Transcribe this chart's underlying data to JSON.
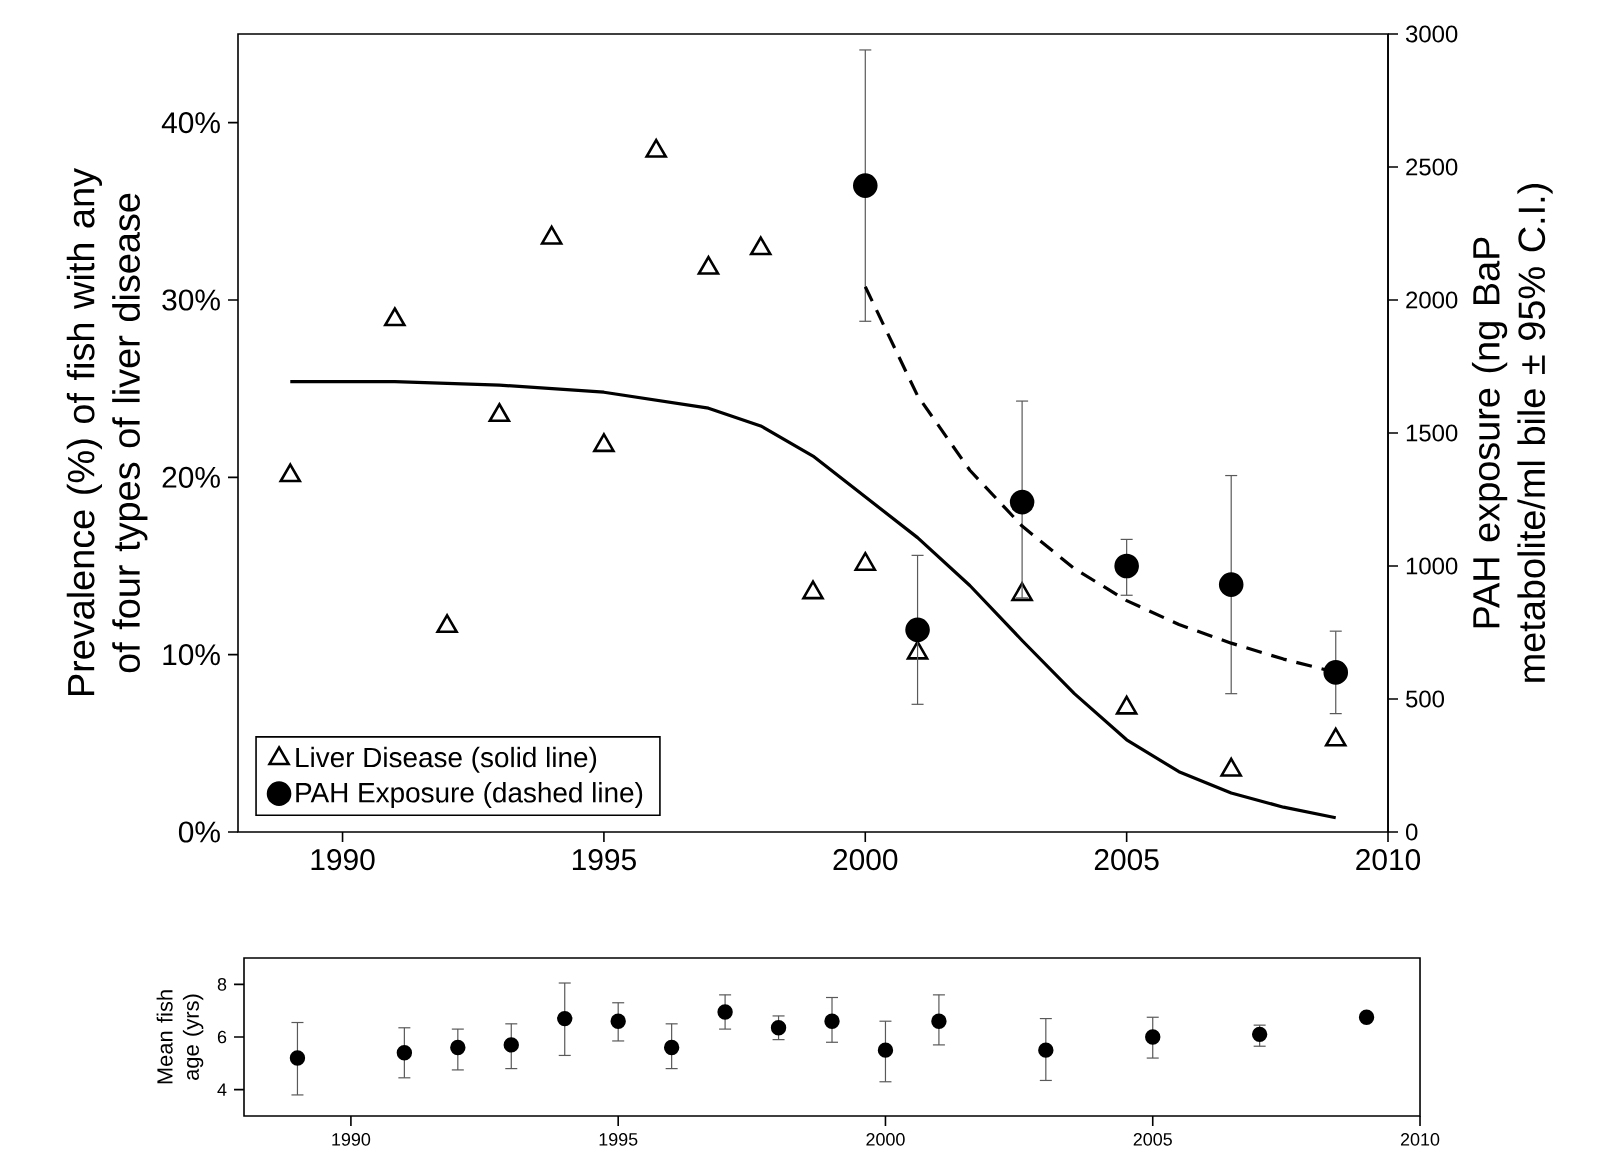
{
  "chart_data": [
    {
      "type": "scatter",
      "xlim": [
        1988,
        2010
      ],
      "xticks": [
        1990,
        1995,
        2000,
        2005,
        2010
      ],
      "ylim": [
        0,
        45
      ],
      "yticks": [
        {
          "value": 0,
          "label": "0%"
        },
        {
          "value": 10,
          "label": "10%"
        },
        {
          "value": 20,
          "label": "20%"
        },
        {
          "value": 30,
          "label": "30%"
        },
        {
          "value": 40,
          "label": "40%"
        }
      ],
      "y2lim": [
        0,
        3000
      ],
      "y2ticks": [
        0,
        500,
        1000,
        1500,
        2000,
        2500,
        3000
      ],
      "ylabel": "Prevalence (%) of fish with any of four types of liver disease",
      "y2label": "PAH exposure (ng BaP metabolite/ml bile ± 95% C.I.)",
      "legend": "bottom left",
      "series": [
        {
          "name": "Liver Disease (solid line)",
          "marker": "triangle",
          "color": "#000000",
          "x": [
            1989,
            1991,
            1992,
            1993,
            1994,
            1995,
            1996,
            1997,
            1998,
            1999,
            2000,
            2001,
            2003,
            2005,
            2007,
            2009
          ],
          "values": [
            20.1,
            28.9,
            11.6,
            23.5,
            33.5,
            21.8,
            38.4,
            31.8,
            32.9,
            13.5,
            15.1,
            10.1,
            13.4,
            7.0,
            3.5,
            5.2
          ]
        },
        {
          "name": "PAH Exposure (dashed line)",
          "marker": "circle",
          "color": "#000000",
          "axis": "y2",
          "x": [
            2000,
            2001,
            2003,
            2005,
            2007,
            2009
          ],
          "values": [
            2430,
            760,
            1240,
            1000,
            930,
            600
          ],
          "errors": [
            [
              1920,
              2940
            ],
            [
              480,
              1040
            ],
            [
              880,
              1620
            ],
            [
              890,
              1100
            ],
            [
              520,
              1340
            ],
            [
              445,
              755
            ]
          ]
        },
        {
          "type": "line",
          "line_style": "solid",
          "color": "#000000",
          "x": [
            1989,
            1991,
            1993,
            1995,
            1997,
            1998,
            1999,
            2000,
            2001,
            2002,
            2003,
            2004,
            2005,
            2006,
            2007,
            2008,
            2009
          ],
          "values": [
            25.4,
            25.4,
            25.2,
            24.8,
            23.9,
            22.9,
            21.2,
            18.9,
            16.6,
            13.9,
            10.8,
            7.8,
            5.2,
            3.4,
            2.2,
            1.4,
            0.8
          ]
        },
        {
          "type": "line",
          "line_style": "dashed",
          "axis": "y2",
          "color": "#000000",
          "x": [
            2000,
            2001,
            2002,
            2003,
            2004,
            2005,
            2006,
            2007,
            2008,
            2009
          ],
          "values": [
            2050,
            1640,
            1360,
            1150,
            990,
            870,
            780,
            710,
            650,
            600
          ]
        }
      ]
    },
    {
      "type": "scatter",
      "xlim": [
        1988,
        2010
      ],
      "xticks": [
        1990,
        1995,
        2000,
        2005,
        2010
      ],
      "ylim": [
        3,
        9
      ],
      "yticks": [
        4,
        6,
        8
      ],
      "ylabel": "Mean fish age (yrs)",
      "series": [
        {
          "marker": "circle",
          "color": "#000000",
          "x": [
            1989,
            1991,
            1992,
            1993,
            1994,
            1995,
            1996,
            1997,
            1998,
            1999,
            2000,
            2001,
            2003,
            2005,
            2007,
            2009
          ],
          "values": [
            5.2,
            5.4,
            5.6,
            5.7,
            6.7,
            6.6,
            5.6,
            6.95,
            6.35,
            6.6,
            5.5,
            6.6,
            5.5,
            6.0,
            6.1,
            6.75
          ],
          "errors": [
            [
              3.8,
              6.55
            ],
            [
              4.45,
              6.35
            ],
            [
              4.75,
              6.3
            ],
            [
              4.8,
              6.5
            ],
            [
              5.3,
              8.05
            ],
            [
              5.85,
              7.3
            ],
            [
              4.8,
              6.5
            ],
            [
              6.3,
              7.6
            ],
            [
              5.9,
              6.8
            ],
            [
              5.8,
              7.5
            ],
            [
              4.3,
              6.6
            ],
            [
              5.7,
              7.6
            ],
            [
              4.35,
              6.7
            ],
            [
              5.2,
              6.75
            ],
            [
              5.65,
              6.45
            ],
            null
          ]
        }
      ]
    }
  ]
}
